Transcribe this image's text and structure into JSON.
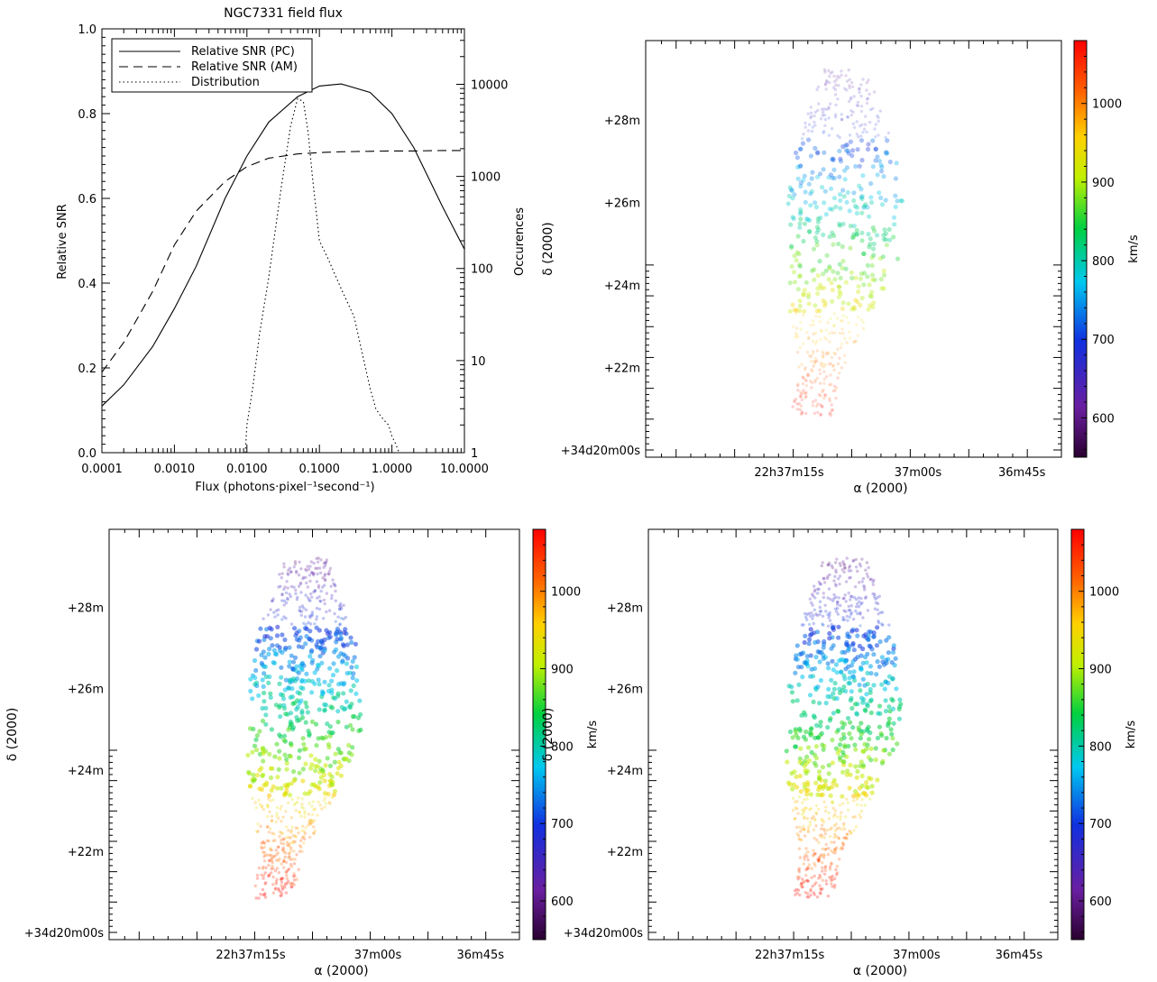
{
  "chart_data": [
    {
      "type": "line",
      "title": "NGC7331 field flux",
      "xlabel": "Flux (photons·pixel⁻¹second⁻¹)",
      "ylabel": "Relative SNR",
      "y2label": "Occurences",
      "xscale": "log",
      "xlim": [
        0.0001,
        10
      ],
      "ylim": [
        0,
        1
      ],
      "y2scale": "log",
      "y2lim": [
        1,
        40000
      ],
      "x_tick_labels": [
        "0.0001",
        "0.0010",
        "0.0100",
        "0.1000",
        "1.0000",
        "10.0000"
      ],
      "y_tick_labels": [
        "0.0",
        "0.2",
        "0.4",
        "0.6",
        "0.8",
        "1.0"
      ],
      "y2_tick_labels": [
        "1",
        "10",
        "100",
        "1000",
        "10000"
      ],
      "legend_position": "top-left",
      "series": [
        {
          "name": "Relative SNR (PC)",
          "style": "solid",
          "axis": "left",
          "x": [
            0.0001,
            0.0002,
            0.0005,
            0.001,
            0.002,
            0.005,
            0.01,
            0.02,
            0.05,
            0.1,
            0.2,
            0.5,
            1,
            2,
            5,
            10
          ],
          "y": [
            0.11,
            0.16,
            0.25,
            0.34,
            0.44,
            0.6,
            0.7,
            0.78,
            0.84,
            0.865,
            0.87,
            0.85,
            0.8,
            0.72,
            0.58,
            0.48
          ]
        },
        {
          "name": "Relative SNR (AM)",
          "style": "dashed",
          "axis": "left",
          "x": [
            0.0001,
            0.0002,
            0.0005,
            0.001,
            0.002,
            0.005,
            0.01,
            0.02,
            0.05,
            0.1,
            0.2,
            0.5,
            1,
            2,
            5,
            10
          ],
          "y": [
            0.19,
            0.26,
            0.38,
            0.49,
            0.57,
            0.64,
            0.675,
            0.695,
            0.705,
            0.708,
            0.71,
            0.711,
            0.712,
            0.712,
            0.713,
            0.713
          ]
        },
        {
          "name": "Distribution",
          "style": "dotted",
          "axis": "right",
          "x": [
            0.0095,
            0.01,
            0.012,
            0.015,
            0.02,
            0.03,
            0.04,
            0.05,
            0.06,
            0.07,
            0.08,
            0.1,
            0.13,
            0.2,
            0.3,
            0.5,
            0.6,
            0.7,
            0.8,
            0.9,
            1.0,
            1.1,
            1.2,
            1.25
          ],
          "y": [
            1,
            2,
            5,
            20,
            80,
            800,
            3500,
            7000,
            6500,
            3000,
            1000,
            200,
            130,
            60,
            30,
            5,
            3,
            2.5,
            2.2,
            2,
            1.5,
            1.3,
            1.1,
            1
          ]
        }
      ]
    },
    {
      "type": "heatmap",
      "xlabel": "α (2000)",
      "ylabel": "δ (2000)",
      "x_tick_labels": [
        "22h37m15s",
        "37m00s",
        "36m45s"
      ],
      "y_tick_labels": [
        "+34d20m00s",
        "+22m",
        "+24m",
        "+26m",
        "+28m"
      ],
      "colorbar_label": "km/s",
      "colorbar_ticks": [
        600,
        700,
        800,
        900,
        1000
      ],
      "colorbar_range": [
        550,
        1080
      ]
    },
    {
      "type": "heatmap",
      "xlabel": "α (2000)",
      "ylabel": "δ (2000)",
      "x_tick_labels": [
        "22h37m15s",
        "37m00s",
        "36m45s"
      ],
      "y_tick_labels": [
        "+34d20m00s",
        "+22m",
        "+24m",
        "+26m",
        "+28m"
      ],
      "colorbar_label": "km/s",
      "colorbar_ticks": [
        600,
        700,
        800,
        900,
        1000
      ],
      "colorbar_range": [
        550,
        1080
      ]
    },
    {
      "type": "heatmap",
      "xlabel": "α (2000)",
      "ylabel": "δ (2000)",
      "x_tick_labels": [
        "22h37m15s",
        "37m00s",
        "36m45s"
      ],
      "y_tick_labels": [
        "+34d20m00s",
        "+22m",
        "+24m",
        "+26m",
        "+28m"
      ],
      "colorbar_label": "km/s",
      "colorbar_ticks": [
        600,
        700,
        800,
        900,
        1000
      ],
      "colorbar_range": [
        550,
        1080
      ]
    }
  ]
}
